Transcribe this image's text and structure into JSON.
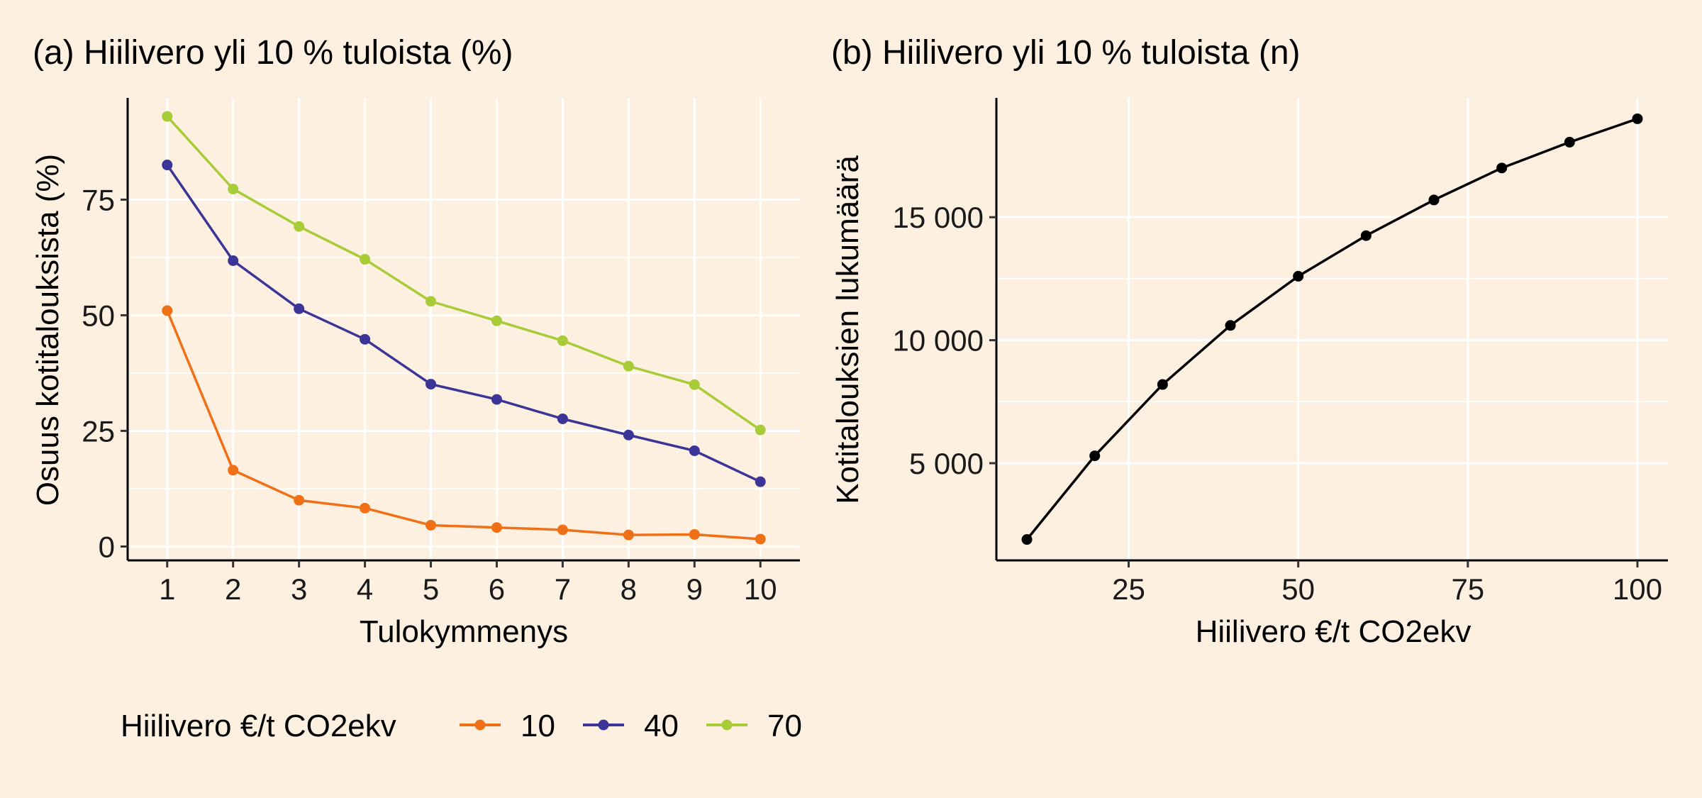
{
  "colors": {
    "background": "#fdf0e0",
    "grid": "#ffffff",
    "axis": "#000000"
  },
  "legend": {
    "title": "Hiilivero €/t CO2ekv",
    "entries": [
      {
        "label": "10",
        "color": "#f07018"
      },
      {
        "label": "40",
        "color": "#3a3596"
      },
      {
        "label": "70",
        "color": "#a8cc38"
      }
    ]
  },
  "chart_data": [
    {
      "id": "a",
      "type": "line",
      "title": "(a) Hiilivero yli 10 % tuloista (%)",
      "xlabel": "Tulokymmenys",
      "ylabel": "Osuus kotitalouksista (%)",
      "x": [
        1,
        2,
        3,
        4,
        5,
        6,
        7,
        8,
        9,
        10
      ],
      "xticks": [
        1,
        2,
        3,
        4,
        5,
        6,
        7,
        8,
        9,
        10
      ],
      "xlim": [
        0.4,
        10.6
      ],
      "yticks": [
        0,
        25,
        50,
        75
      ],
      "ytick_labels": [
        "0",
        "25",
        "50",
        "75"
      ],
      "ylim": [
        -3,
        97
      ],
      "grid": true,
      "legend_position": "bottom",
      "series": [
        {
          "name": "10",
          "color": "#f07018",
          "values": [
            51,
            16.5,
            10,
            8.3,
            4.6,
            4.1,
            3.6,
            2.5,
            2.6,
            1.6
          ]
        },
        {
          "name": "40",
          "color": "#3a3596",
          "values": [
            82.5,
            61.8,
            51.4,
            44.8,
            35.1,
            31.8,
            27.6,
            24.1,
            20.7,
            14
          ]
        },
        {
          "name": "70",
          "color": "#a8cc38",
          "values": [
            93,
            77.3,
            69.2,
            62.1,
            53,
            48.8,
            44.5,
            39,
            35,
            25.2
          ]
        }
      ]
    },
    {
      "id": "b",
      "type": "line",
      "title": "(b) Hiilivero yli 10 % tuloista (n)",
      "xlabel": "Hiilivero €/t CO2ekv",
      "ylabel": "Kotitalouksien lukumäärä",
      "xticks": [
        25,
        50,
        75,
        100
      ],
      "xtick_labels": [
        "25",
        "50",
        "75",
        "100"
      ],
      "xlim": [
        5.5,
        104.5
      ],
      "yticks": [
        5000,
        10000,
        15000
      ],
      "ytick_labels": [
        "5 000",
        "10 000",
        "15 000"
      ],
      "ylim": [
        1050,
        19850
      ],
      "grid": true,
      "series": [
        {
          "name": "Kotitalouksien lukumäärä",
          "color": "#000000",
          "x": [
            10,
            20,
            30,
            40,
            50,
            60,
            70,
            80,
            90,
            100
          ],
          "values": [
            1900,
            5300,
            8200,
            10600,
            12600,
            14250,
            15700,
            17000,
            18050,
            19000
          ]
        }
      ]
    }
  ]
}
